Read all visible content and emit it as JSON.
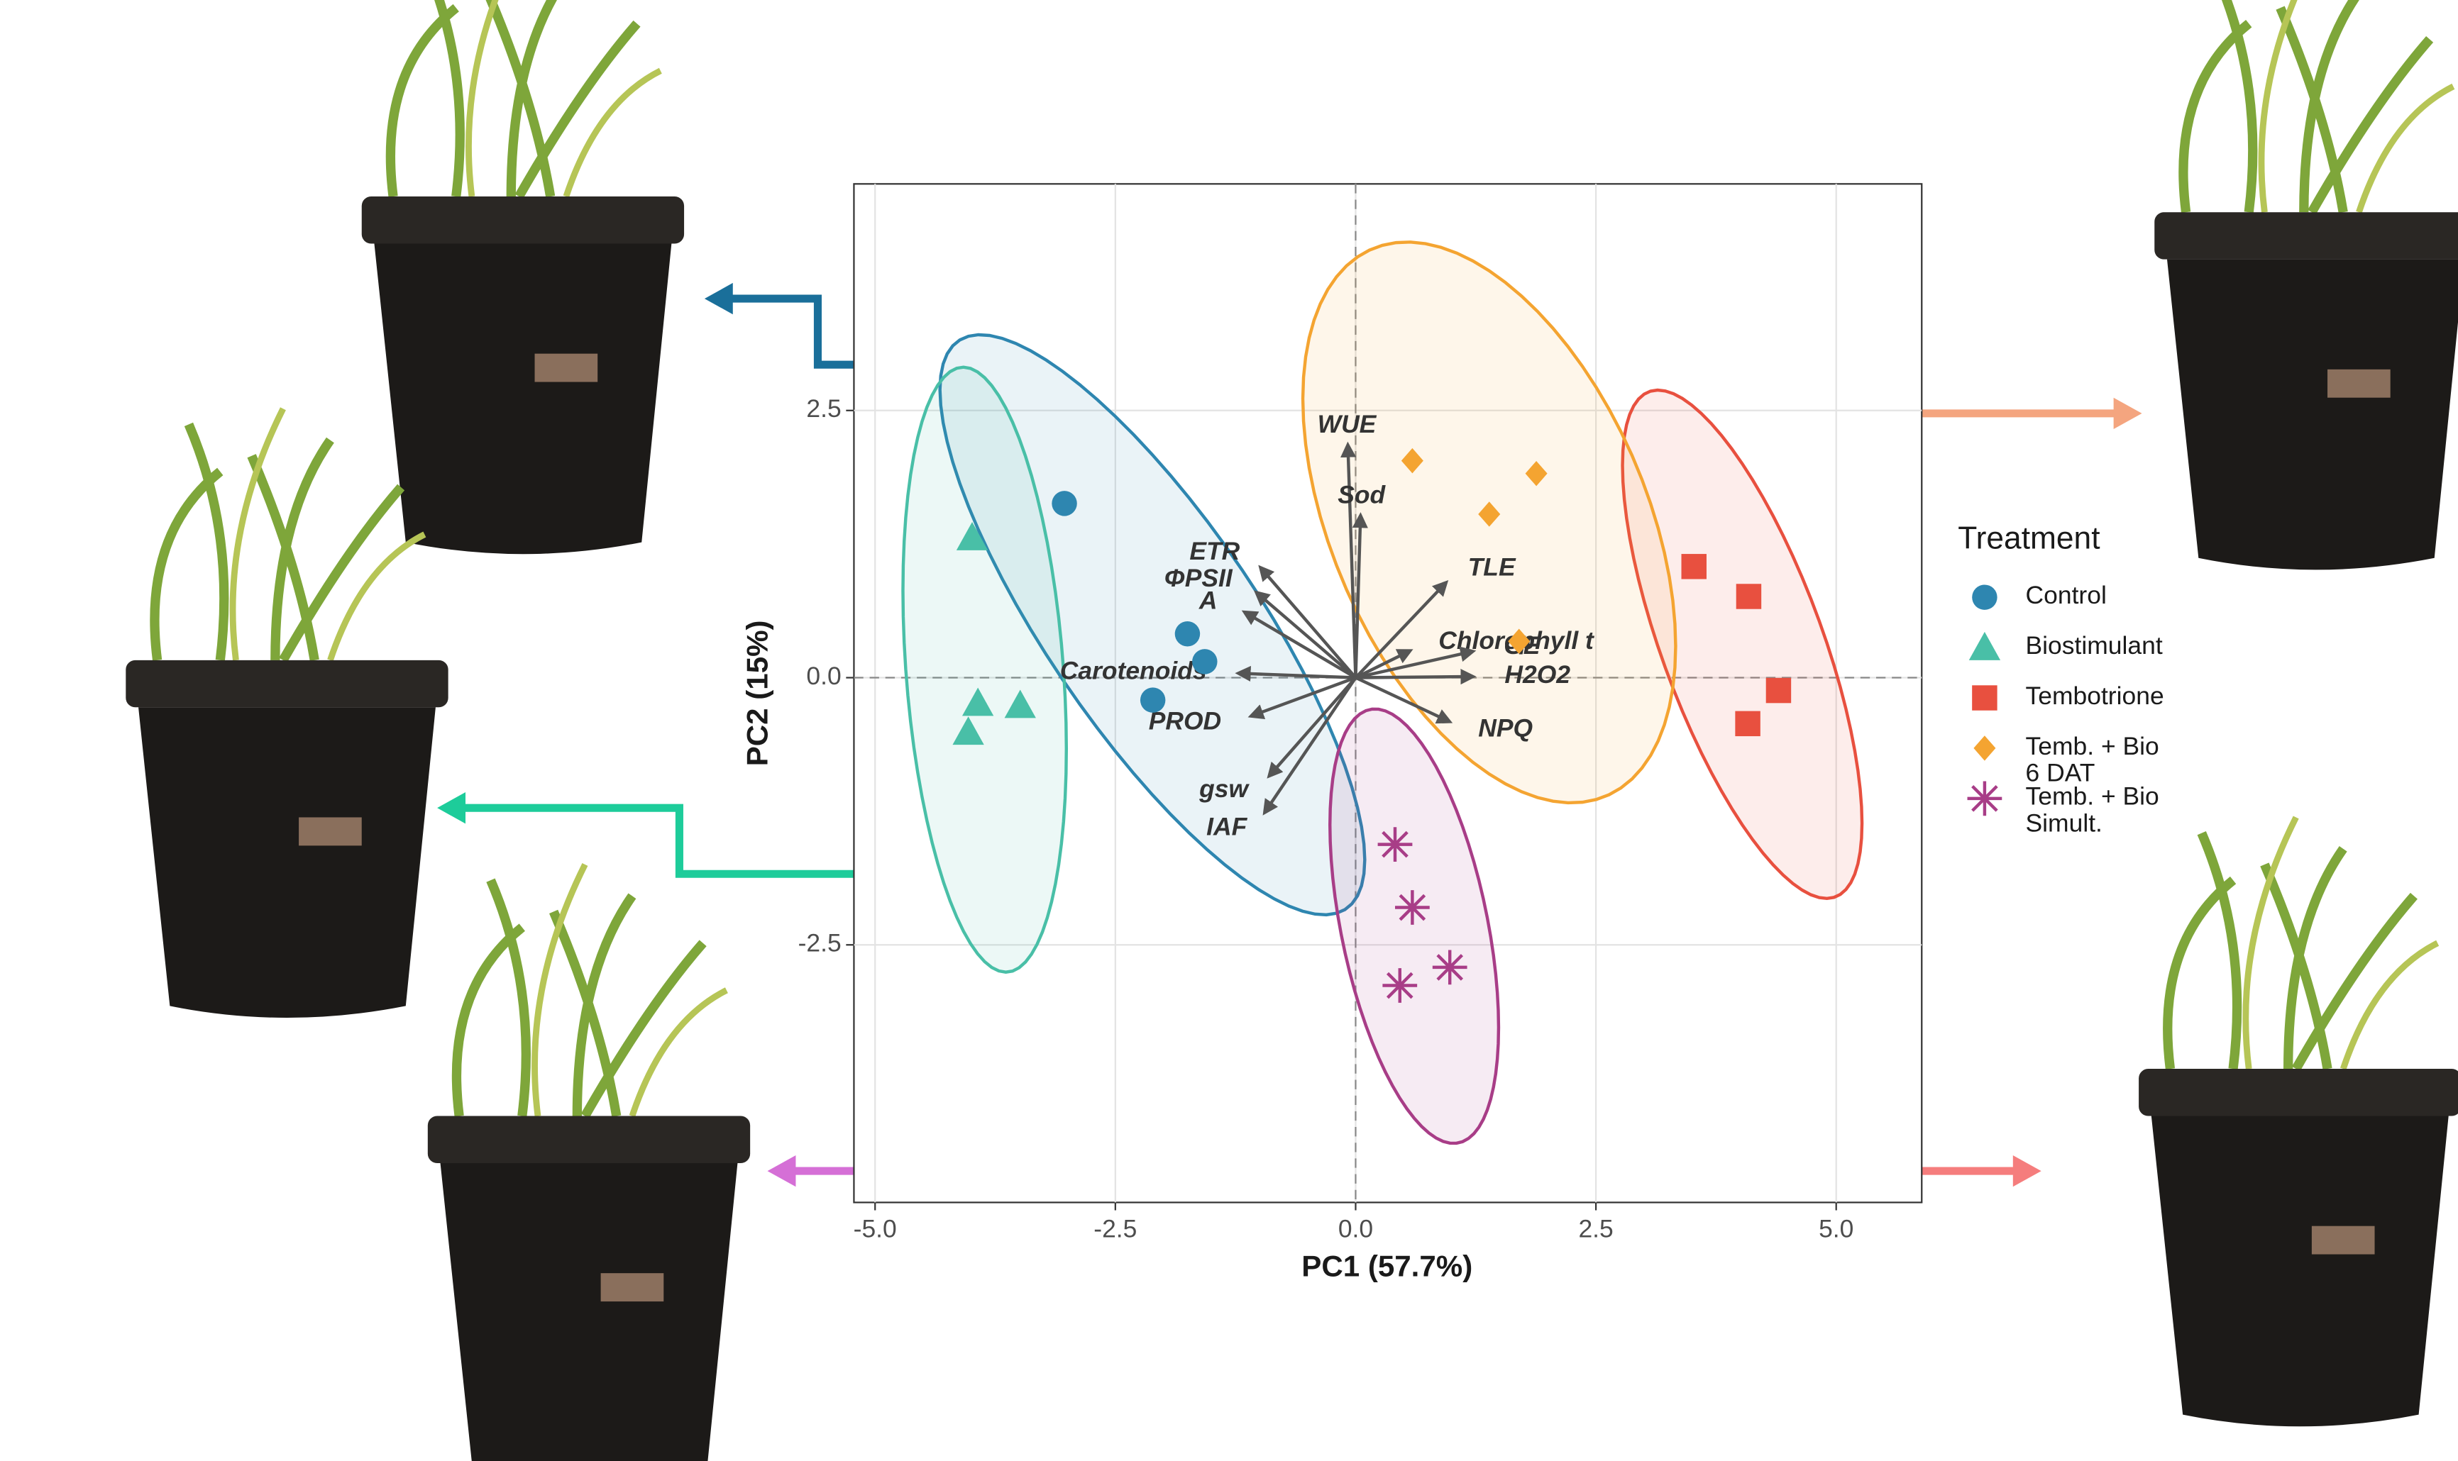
{
  "chart_data": {
    "type": "scatter",
    "x_label": "PC1 (57.7%)",
    "y_label": "PC2 (15%)",
    "xlim": [
      -5.22,
      5.89
    ],
    "ylim": [
      -4.91,
      4.62
    ],
    "xticks": [
      {
        "value": -5,
        "label": "-5.0"
      },
      {
        "value": -2.5,
        "label": "-2.5"
      },
      {
        "value": 0,
        "label": "0.0"
      },
      {
        "value": 2.5,
        "label": "2.5"
      },
      {
        "value": 5,
        "label": "5.0"
      }
    ],
    "yticks": [
      {
        "value": -2.5,
        "label": "-2.5"
      },
      {
        "value": 0,
        "label": "0.0"
      },
      {
        "value": 2.5,
        "label": "2.5"
      }
    ],
    "grid": true,
    "legend_title": "Treatment",
    "legend_position": "right",
    "series": [
      {
        "name": "Control",
        "color": "#2e86b0",
        "shape": "circle",
        "x": [
          -3.03,
          -1.75,
          -1.57,
          -2.11
        ],
        "y": [
          1.63,
          0.41,
          0.15,
          -0.21
        ]
      },
      {
        "name": "Biostimulant",
        "color": "#49bfa7",
        "shape": "triangle",
        "x": [
          -3.99,
          -3.93,
          -3.49,
          -4.03
        ],
        "y": [
          1.31,
          -0.24,
          -0.26,
          -0.51
        ]
      },
      {
        "name": "Tembotrione",
        "color": "#e8503f",
        "shape": "square",
        "x": [
          3.52,
          4.09,
          4.4,
          4.08
        ],
        "y": [
          1.04,
          0.76,
          -0.12,
          -0.43
        ]
      },
      {
        "name": "Temb. + Bio 6 DAT",
        "color": "#f4a431",
        "shape": "diamond",
        "x": [
          0.59,
          1.88,
          1.39,
          1.7
        ],
        "y": [
          2.03,
          1.91,
          1.53,
          0.34
        ]
      },
      {
        "name": "Temb. + Bio Simult.",
        "color": "#a83d87",
        "shape": "asterisk",
        "x": [
          0.41,
          0.59,
          0.98,
          0.46
        ],
        "y": [
          -1.56,
          -2.15,
          -2.71,
          -2.88
        ]
      }
    ],
    "loadings": {
      "names": [
        "WUE",
        "Sod",
        "ΦPSII",
        "ETR",
        "TLE",
        "A",
        "Chlorophyll t",
        "GE",
        "H2O2",
        "Carotenoids",
        "PROD",
        "NPQ",
        "gsw",
        "IAF"
      ],
      "x": [
        -0.08,
        0.05,
        -1.01,
        -0.97,
        0.92,
        -1.13,
        0.54,
        1.19,
        1.19,
        -1.19,
        -1.06,
        0.95,
        -0.88,
        -0.93
      ],
      "y": [
        2.15,
        1.49,
        0.78,
        1.01,
        0.87,
        0.6,
        0.24,
        0.24,
        0.01,
        0.04,
        -0.35,
        -0.4,
        -0.9,
        -1.24
      ]
    }
  }
}
